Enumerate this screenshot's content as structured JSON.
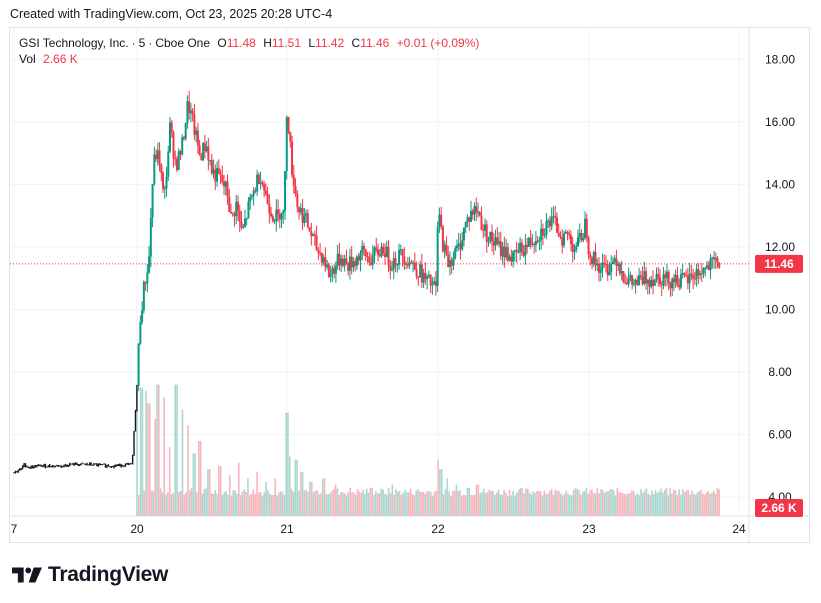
{
  "header": {
    "created_text": "Created with TradingView.com, Oct 23, 2025 20:28 UTC-4"
  },
  "legend": {
    "symbol": "GSI Technology, Inc.",
    "interval": "5",
    "exchange": "Cboe One",
    "open_label": "O",
    "open": "11.48",
    "high_label": "H",
    "high": "11.51",
    "low_label": "L",
    "low": "11.42",
    "close_label": "C",
    "close": "11.46",
    "change": "+0.01 (+0.09%)",
    "vol_label": "Vol",
    "vol": "2.66 K"
  },
  "brand": {
    "name": "TradingView"
  },
  "colors": {
    "up": "#089981",
    "down": "#f23645",
    "grid": "#f0f3fa",
    "text": "#131722",
    "last_line": "#f23645",
    "volume_up": "#a8d8d0",
    "volume_down": "#f7b6bb"
  },
  "chart_data": {
    "type": "candlestick",
    "title": "GSI Technology, Inc. · 5 · Cboe One",
    "x_ticks": [
      "7",
      "20",
      "21",
      "22",
      "23",
      "24"
    ],
    "y_ticks": [
      "4.00",
      "6.00",
      "8.00",
      "10.00",
      "12.00",
      "14.00",
      "16.00",
      "18.00"
    ],
    "ylim": [
      3.4,
      19.0
    ],
    "last_price": "11.46",
    "last_volume": "2.66 K",
    "grid": true,
    "price_path": [
      [
        0.0,
        4.8
      ],
      [
        0.06,
        4.9
      ],
      [
        0.08,
        5.05
      ],
      [
        0.12,
        4.95
      ],
      [
        0.2,
        5.0
      ],
      [
        0.32,
        5.0
      ],
      [
        0.4,
        5.0
      ],
      [
        0.455,
        5.05
      ],
      [
        0.6,
        5.05
      ],
      [
        0.8,
        5.0
      ],
      [
        0.96,
        5.05
      ],
      [
        1.0,
        7.6
      ],
      [
        1.02,
        9.7
      ],
      [
        1.05,
        10.8
      ],
      [
        1.08,
        11.6
      ],
      [
        1.1,
        13.8
      ],
      [
        1.12,
        15.0
      ],
      [
        1.15,
        14.8
      ],
      [
        1.18,
        13.4
      ],
      [
        1.22,
        15.8
      ],
      [
        1.26,
        14.6
      ],
      [
        1.3,
        15.2
      ],
      [
        1.34,
        16.6
      ],
      [
        1.38,
        15.8
      ],
      [
        1.42,
        14.9
      ],
      [
        1.46,
        15.3
      ],
      [
        1.5,
        14.4
      ],
      [
        1.55,
        14.2
      ],
      [
        1.6,
        13.8
      ],
      [
        1.63,
        12.8
      ],
      [
        1.66,
        13.4
      ],
      [
        1.7,
        12.4
      ],
      [
        1.74,
        13.2
      ],
      [
        1.78,
        13.8
      ],
      [
        1.82,
        14.4
      ],
      [
        1.86,
        13.6
      ],
      [
        1.9,
        13.1
      ],
      [
        1.94,
        12.9
      ],
      [
        1.96,
        13.3
      ],
      [
        1.98,
        13.0
      ],
      [
        2.0,
        16.6
      ],
      [
        2.03,
        14.6
      ],
      [
        2.07,
        13.3
      ],
      [
        2.12,
        12.9
      ],
      [
        2.16,
        12.4
      ],
      [
        2.2,
        11.9
      ],
      [
        2.24,
        11.7
      ],
      [
        2.28,
        11.1
      ],
      [
        2.32,
        11.4
      ],
      [
        2.36,
        11.7
      ],
      [
        2.4,
        11.4
      ],
      [
        2.45,
        11.6
      ],
      [
        2.5,
        11.8
      ],
      [
        2.55,
        11.6
      ],
      [
        2.6,
        11.8
      ],
      [
        2.64,
        12.0
      ],
      [
        2.68,
        11.5
      ],
      [
        2.72,
        11.6
      ],
      [
        2.76,
        11.8
      ],
      [
        2.8,
        11.6
      ],
      [
        2.84,
        11.4
      ],
      [
        2.88,
        11.2
      ],
      [
        2.92,
        10.9
      ],
      [
        2.96,
        10.8
      ],
      [
        2.99,
        10.6
      ],
      [
        3.0,
        13.2
      ],
      [
        3.03,
        12.2
      ],
      [
        3.06,
        11.5
      ],
      [
        3.1,
        11.7
      ],
      [
        3.14,
        12.0
      ],
      [
        3.18,
        12.7
      ],
      [
        3.22,
        13.1
      ],
      [
        3.26,
        13.2
      ],
      [
        3.3,
        12.6
      ],
      [
        3.34,
        12.3
      ],
      [
        3.38,
        12.1
      ],
      [
        3.42,
        11.9
      ],
      [
        3.46,
        11.8
      ],
      [
        3.5,
        11.6
      ],
      [
        3.54,
        11.9
      ],
      [
        3.58,
        12.0
      ],
      [
        3.62,
        12.2
      ],
      [
        3.66,
        12.4
      ],
      [
        3.7,
        12.6
      ],
      [
        3.74,
        12.8
      ],
      [
        3.78,
        12.7
      ],
      [
        3.82,
        12.3
      ],
      [
        3.86,
        12.4
      ],
      [
        3.9,
        12.0
      ],
      [
        3.94,
        12.2
      ],
      [
        3.98,
        12.8
      ],
      [
        4.0,
        11.9
      ],
      [
        4.03,
        11.6
      ],
      [
        4.06,
        11.4
      ],
      [
        4.1,
        11.3
      ],
      [
        4.14,
        11.4
      ],
      [
        4.18,
        11.7
      ],
      [
        4.22,
        11.2
      ],
      [
        4.26,
        10.9
      ],
      [
        4.3,
        10.8
      ],
      [
        4.34,
        10.9
      ],
      [
        4.38,
        11.0
      ],
      [
        4.42,
        11.0
      ],
      [
        4.46,
        11.1
      ],
      [
        4.5,
        11.0
      ],
      [
        4.54,
        10.95
      ],
      [
        4.58,
        11.0
      ],
      [
        4.62,
        10.9
      ],
      [
        4.66,
        10.95
      ],
      [
        4.7,
        11.1
      ],
      [
        4.74,
        11.2
      ],
      [
        4.78,
        11.3
      ],
      [
        4.82,
        11.4
      ],
      [
        4.86,
        11.5
      ],
      [
        4.88,
        11.46
      ]
    ],
    "volume_spikes": [
      [
        1.0,
        7.4
      ],
      [
        1.03,
        7.5
      ],
      [
        1.06,
        7.4
      ],
      [
        1.08,
        7.0
      ],
      [
        1.12,
        6.5
      ],
      [
        1.14,
        7.6
      ],
      [
        1.18,
        7.2
      ],
      [
        1.22,
        5.6
      ],
      [
        1.26,
        7.6
      ],
      [
        1.3,
        6.8
      ],
      [
        1.34,
        6.3
      ],
      [
        1.38,
        5.4
      ],
      [
        1.42,
        5.8
      ],
      [
        1.48,
        4.9
      ],
      [
        1.55,
        5.0
      ],
      [
        1.62,
        4.7
      ],
      [
        1.68,
        5.1
      ],
      [
        1.74,
        4.6
      ],
      [
        1.8,
        4.8
      ],
      [
        1.86,
        4.5
      ],
      [
        1.92,
        4.6
      ],
      [
        2.0,
        6.7
      ],
      [
        2.02,
        5.3
      ],
      [
        2.06,
        5.2
      ],
      [
        2.1,
        4.8
      ],
      [
        2.16,
        4.5
      ],
      [
        2.24,
        4.6
      ],
      [
        2.32,
        4.4
      ],
      [
        2.42,
        4.3
      ],
      [
        2.56,
        4.3
      ],
      [
        2.7,
        4.4
      ],
      [
        2.86,
        4.2
      ],
      [
        3.0,
        5.2
      ],
      [
        3.02,
        4.9
      ],
      [
        3.06,
        4.6
      ],
      [
        3.12,
        4.4
      ],
      [
        3.2,
        4.3
      ],
      [
        3.26,
        4.4
      ],
      [
        3.36,
        4.2
      ],
      [
        3.5,
        4.2
      ],
      [
        3.66,
        4.2
      ],
      [
        3.8,
        4.2
      ],
      [
        3.92,
        4.1
      ],
      [
        4.0,
        4.1
      ],
      [
        4.15,
        4.2
      ],
      [
        4.3,
        4.2
      ],
      [
        4.5,
        4.1
      ],
      [
        4.7,
        4.1
      ]
    ]
  }
}
